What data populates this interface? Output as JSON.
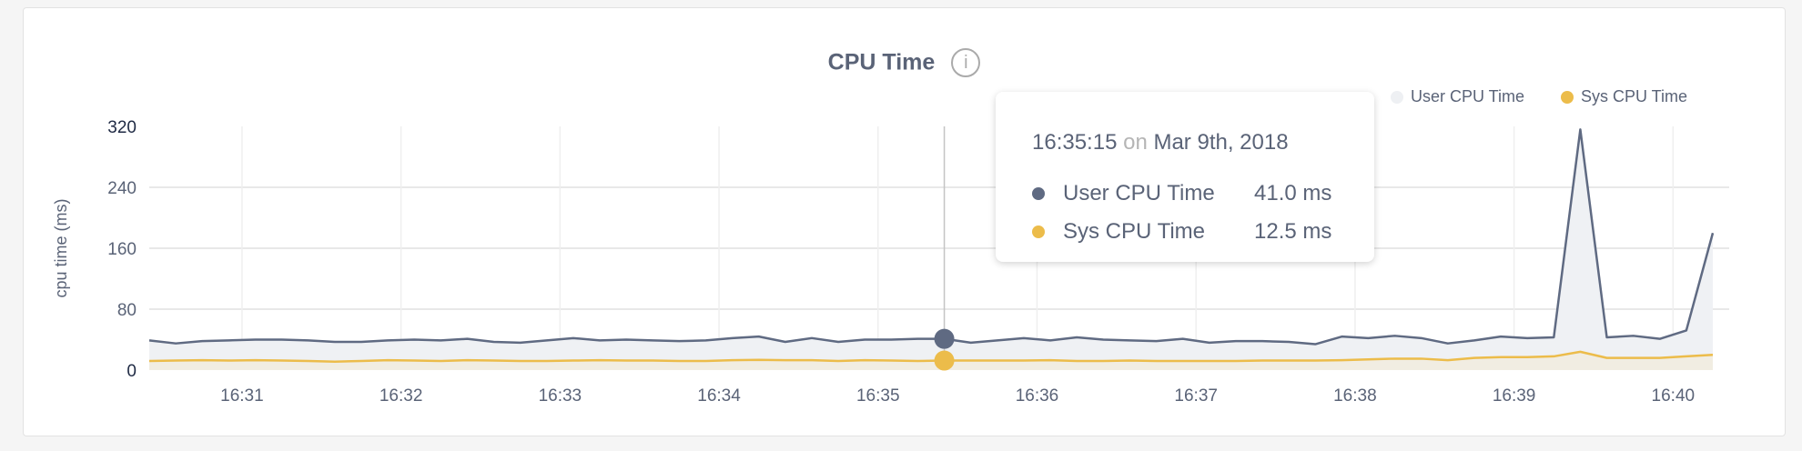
{
  "chart_data": {
    "type": "area",
    "title": "CPU Time",
    "ylabel": "cpu time (ms)",
    "xlabel": "",
    "ylim": [
      0,
      320
    ],
    "yticks": [
      "0",
      "80",
      "160",
      "240",
      "320"
    ],
    "xticks": [
      "16:31",
      "16:32",
      "16:33",
      "16:34",
      "16:35",
      "16:36",
      "16:37",
      "16:38",
      "16:39",
      "16:40"
    ],
    "x_start": "16:30:25",
    "x_step_seconds": 10,
    "x_end": "16:40:15",
    "grid": true,
    "legend_placement": "top-right",
    "series": [
      {
        "name": "User CPU Time",
        "color": "#5f6a82",
        "values": [
          39,
          35,
          38,
          39,
          40,
          40,
          39,
          37,
          37,
          39,
          40,
          39,
          41,
          37,
          36,
          39,
          42,
          39,
          40,
          39,
          38,
          39,
          42,
          44,
          37,
          42,
          37,
          40,
          40,
          41,
          41,
          36,
          39,
          42,
          39,
          43,
          40,
          39,
          38,
          41,
          36,
          38,
          38,
          37,
          34,
          44,
          42,
          45,
          42,
          35,
          39,
          44,
          42,
          43,
          316,
          43,
          45,
          41,
          52,
          180
        ]
      },
      {
        "name": "Sys CPU Time",
        "color": "#ecbc4a",
        "values": [
          12,
          12.5,
          13,
          12.5,
          13,
          12.5,
          12,
          11,
          12,
          13,
          12.5,
          12,
          13,
          12.5,
          12,
          12,
          12.5,
          13,
          12.5,
          12.5,
          12,
          12,
          13,
          13.5,
          13,
          13,
          12,
          13,
          12.5,
          12,
          12.5,
          12.5,
          12.5,
          12.5,
          13,
          12,
          12,
          12.5,
          12,
          12,
          12,
          12,
          12.5,
          12.5,
          12.5,
          13,
          14,
          15,
          15,
          13,
          16,
          17,
          17,
          18,
          24,
          16,
          16,
          16,
          18,
          20
        ]
      }
    ],
    "hover_index": 30,
    "tooltip": {
      "time": "16:35:15",
      "on": "on",
      "date": "Mar 9th, 2018",
      "rows": [
        {
          "label": "User CPU Time",
          "value": "41.0 ms",
          "color": "#5f6a82"
        },
        {
          "label": "Sys CPU Time",
          "value": "12.5 ms",
          "color": "#ecbc4a"
        }
      ]
    }
  },
  "info_icon": "info-circle-icon",
  "info_glyph": "i"
}
